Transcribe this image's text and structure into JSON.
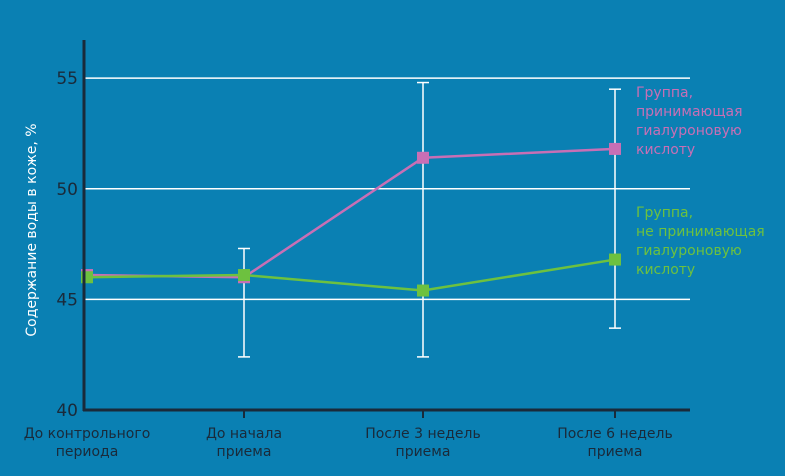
{
  "chart_data": {
    "type": "line",
    "ylabel": "Содержание воды в коже, %",
    "ylim": [
      40,
      56
    ],
    "yticks": [
      40,
      45,
      50,
      55
    ],
    "grid": "horizontal",
    "categories": [
      [
        "До контрольного",
        "периода"
      ],
      [
        "До начала",
        "приема"
      ],
      [
        "После 3 недель",
        "приема"
      ],
      [
        "После 6 недель",
        "приема"
      ]
    ],
    "series": [
      {
        "name": [
          "Группа,",
          "принимающая",
          "гиалуроновую",
          "кислоту"
        ],
        "color": "#c86fb5",
        "values": [
          46.1,
          46.0,
          51.4,
          51.8
        ],
        "error_bars": [
          null,
          [
            42.4,
            47.3
          ],
          [
            42.4,
            54.8
          ],
          [
            43.7,
            54.5
          ]
        ]
      },
      {
        "name": [
          "Группа,",
          "не принимающая",
          "гиалуроновую",
          "кислоту"
        ],
        "color": "#6dc13f",
        "values": [
          46.0,
          46.1,
          45.4,
          46.8
        ],
        "error_bars": null
      }
    ],
    "legend": "right"
  }
}
